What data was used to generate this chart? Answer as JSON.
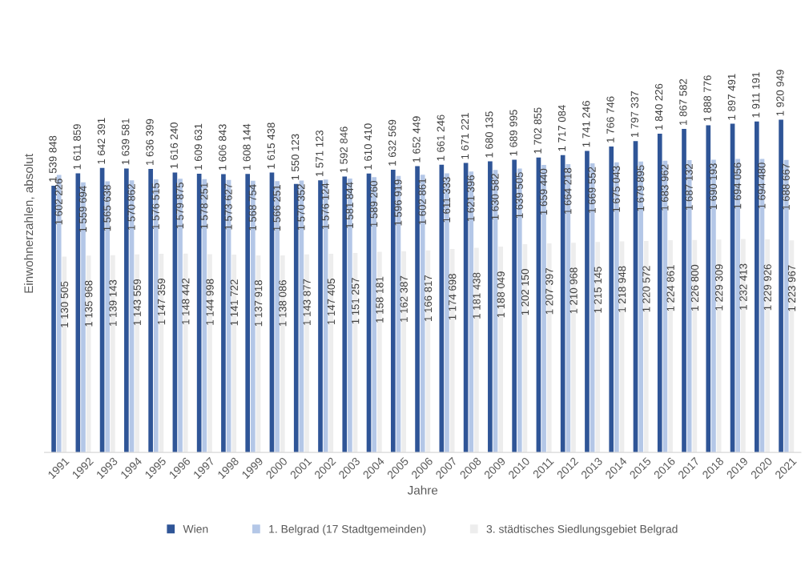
{
  "chart_data": {
    "type": "bar",
    "xlabel": "Jahre",
    "ylabel": "Einwohnerzahlen, absolut",
    "categories": [
      "1991",
      "1992",
      "1993",
      "1994",
      "1995",
      "1996",
      "1997",
      "1998",
      "1999",
      "2000",
      "2001",
      "2002",
      "2003",
      "2004",
      "2005",
      "2006",
      "2007",
      "2008",
      "2009",
      "2010",
      "2011",
      "2012",
      "2013",
      "2014",
      "2015",
      "2016",
      "2017",
      "2018",
      "2019",
      "2020",
      "2021"
    ],
    "grid": false,
    "legend": "bottom",
    "tick_labels": "x",
    "series": [
      {
        "name": "Wien",
        "color": "#2f5597",
        "values": [
          1539848,
          1611859,
          1642391,
          1639581,
          1636399,
          1616240,
          1609631,
          1606843,
          1608144,
          1615438,
          1550123,
          1571123,
          1592846,
          1610410,
          1632569,
          1652449,
          1661246,
          1671221,
          1680135,
          1689995,
          1702855,
          1717084,
          1741246,
          1766746,
          1797337,
          1840226,
          1867582,
          1888776,
          1897491,
          1911191,
          1920949
        ],
        "value_labels": [
          "1 539 848",
          "1 611 859",
          "1 642 391",
          "1 639 581",
          "1 636 399",
          "1 616 240",
          "1 609 631",
          "1 606 843",
          "1 608 144",
          "1 615 438",
          "1 550 123",
          "1 571 123",
          "1 592 846",
          "1 610 410",
          "1 632 569",
          "1 652 449",
          "1 661 246",
          "1 671 221",
          "1 680 135",
          "1 689 995",
          "1 702 855",
          "1 717 084",
          "1 741 246",
          "1 766 746",
          "1 797 337",
          "1 840 226",
          "1 867 582",
          "1 888 776",
          "1 897 491",
          "1 911 191",
          "1 920 949"
        ]
      },
      {
        "name": "1. Belgrad (17 Stadtgemeinden)",
        "color": "#b4c7e7",
        "values": [
          1602226,
          1559694,
          1565638,
          1570862,
          1576515,
          1579875,
          1578251,
          1573627,
          1568754,
          1566251,
          1570352,
          1576124,
          1581844,
          1589260,
          1596919,
          1602861,
          1611333,
          1621396,
          1630582,
          1639505,
          1659440,
          1664218,
          1669552,
          1675043,
          1679895,
          1683962,
          1687132,
          1690193,
          1694056,
          1694480,
          1688667
        ],
        "value_labels": [
          "1 602 226",
          "1 559 694",
          "1 565 638",
          "1 570 862",
          "1 576 515",
          "1 579 875",
          "1 578 251",
          "1 573 627",
          "1 568 754",
          "1 566 251",
          "1 570 352",
          "1 576 124",
          "1 581 844",
          "1 589 260",
          "1 596 919",
          "1 602 861",
          "1 611 333",
          "1 621 396",
          "1 630 582",
          "1 639 505",
          "1 659 440",
          "1 664 218",
          "1 669 552",
          "1 675 043",
          "1 679 895",
          "1 683 962",
          "1 687 132",
          "1 690 193",
          "1 694 056",
          "1 694 480",
          "1 688 667"
        ]
      },
      {
        "name": "3. städtisches Siedlungsgebiet Belgrad",
        "color": "#ededed",
        "values": [
          1130505,
          1135968,
          1139143,
          1143559,
          1147359,
          1148442,
          1144998,
          1141722,
          1137918,
          1138086,
          1143877,
          1147405,
          1151257,
          1158181,
          1162387,
          1166817,
          1174698,
          1181438,
          1188049,
          1202150,
          1207397,
          1210968,
          1215145,
          1218948,
          1220572,
          1224861,
          1226800,
          1229309,
          1232413,
          1229926,
          1223967
        ],
        "value_labels": [
          "1 130 505",
          "1 135 968",
          "1 139 143",
          "1 143 559",
          "1 147 359",
          "1 148 442",
          "1 144 998",
          "1 141 722",
          "1 137 918",
          "1 138 086",
          "1 143 877",
          "1 147 405",
          "1 151 257",
          "1 158 181",
          "1 162 387",
          "1 166 817",
          "1 174 698",
          "1 181 438",
          "1 188 049",
          "1 202 150",
          "1 207 397",
          "1 210 968",
          "1 215 145",
          "1 218 948",
          "1 220 572",
          "1 224 861",
          "1 226 800",
          "1 229 309",
          "1 232 413",
          "1 229 926",
          "1 223 967"
        ]
      }
    ]
  }
}
